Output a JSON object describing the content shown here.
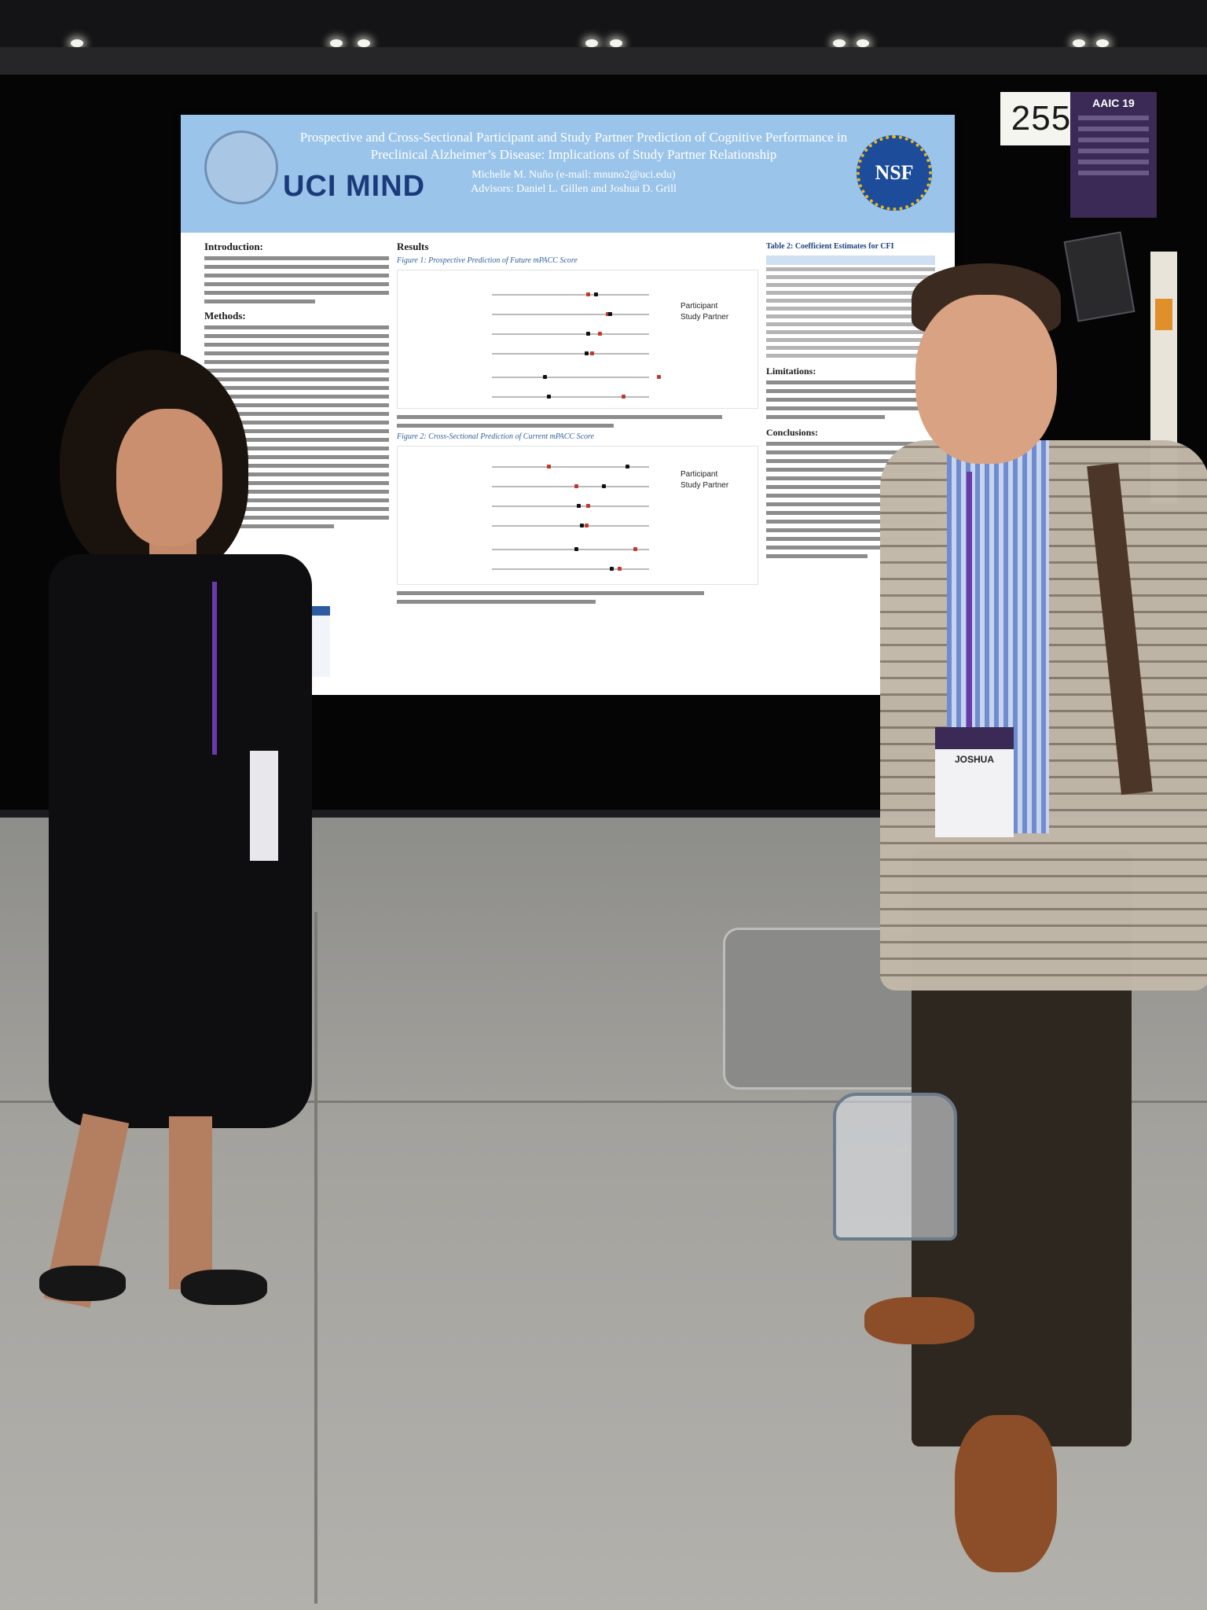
{
  "booth": {
    "number": "255"
  },
  "poster": {
    "title": "Prospective and Cross-Sectional Participant and Study Partner Prediction of Cognitive Performance in Preclinical Alzheimer’s Disease: Implications of Study Partner Relationship",
    "author": "Michelle M. Nuño (e-mail: mnuno2@uci.edu)",
    "advisors": "Advisors: Daniel L. Gillen and Joshua D. Grill",
    "logo_left": "UCI MIND",
    "logo_right": "NSF",
    "sections": {
      "introduction": "Introduction:",
      "methods": "Methods:",
      "results": "Results",
      "limitations": "Limitations:",
      "conclusions": "Conclusions:"
    },
    "figure1_caption": "Figure 1: Prospective Prediction of Future mPACC Score",
    "figure2_caption": "Figure 2: Cross-Sectional Prediction of Current mPACC Score",
    "legend": {
      "participant": "Participant",
      "study_partner": "Study Partner"
    },
    "table2_caption": "Table 2: Coefficient Estimates for CFI"
  },
  "badges": {
    "man_name": "JOSHUA",
    "event": "AAIC 19"
  },
  "colors": {
    "poster_header": "#9bc4ea",
    "lanyard": "#6a3aa8",
    "uci_blue": "#1b3a7a"
  }
}
